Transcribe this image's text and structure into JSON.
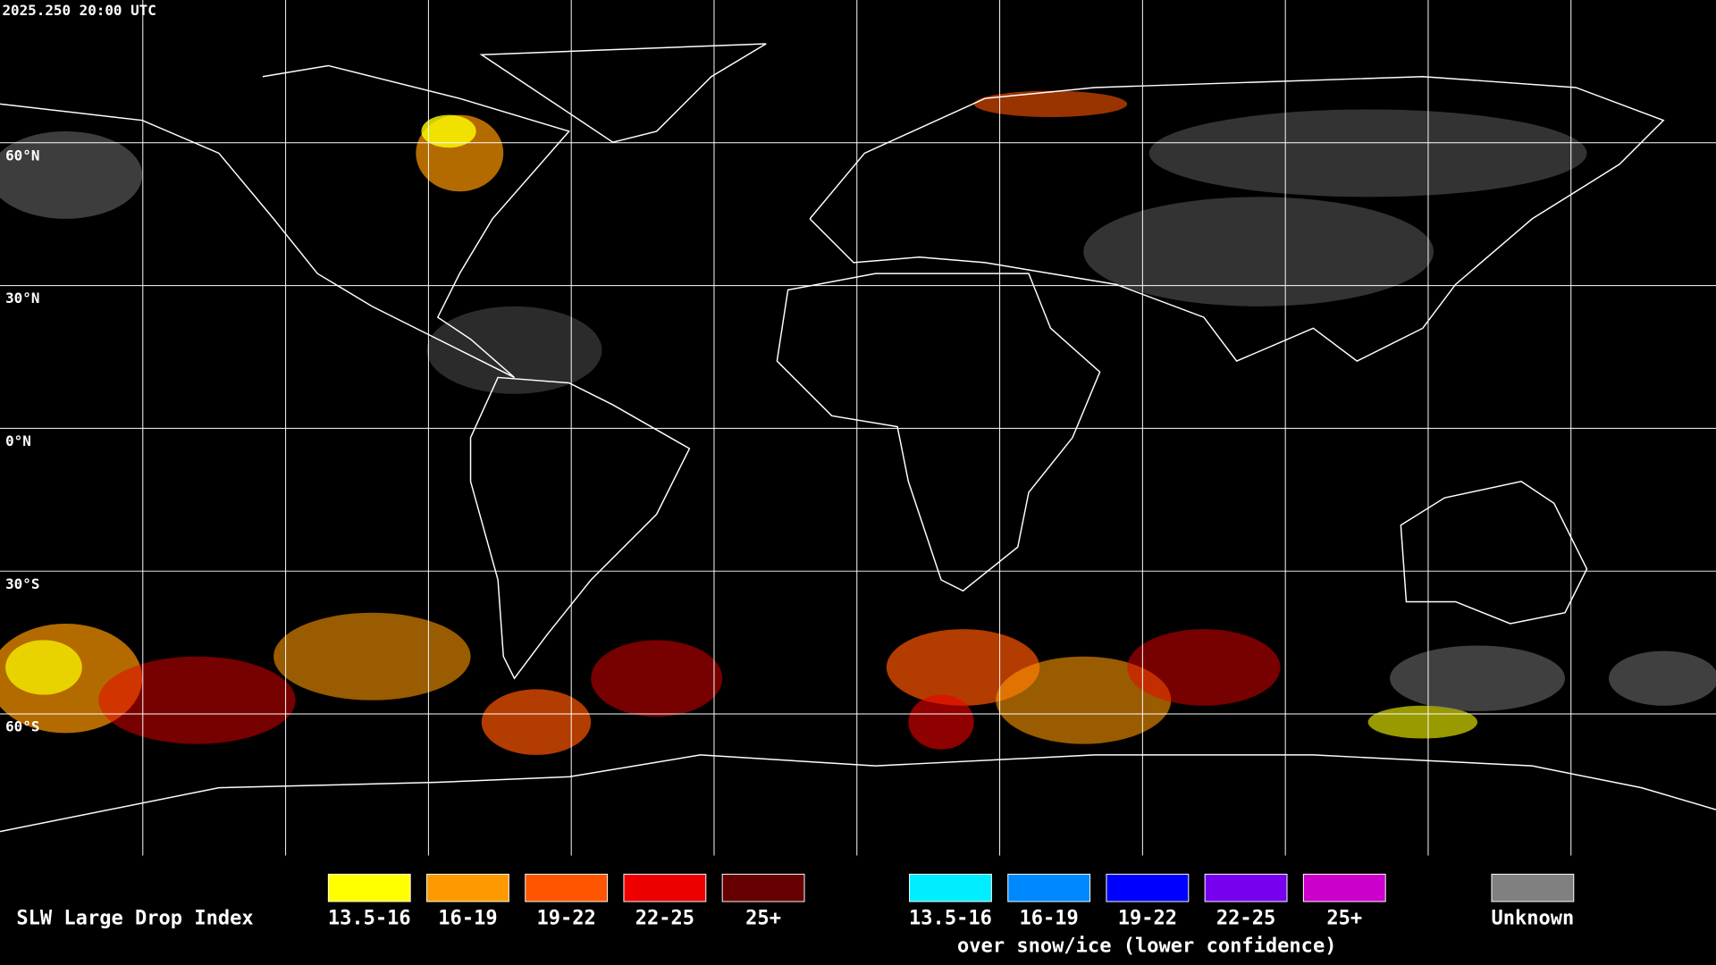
{
  "header": {
    "timestamp": "2025.250 20:00 UTC"
  },
  "map": {
    "latitude_labels": [
      "60°N",
      "30°N",
      "0°N",
      "30°S",
      "60°S"
    ]
  },
  "legend": {
    "title": "SLW Large Drop Index",
    "groups": [
      {
        "items": [
          {
            "label": "13.5-16",
            "color": "#ffff00"
          },
          {
            "label": "16-19",
            "color": "#ff9900"
          },
          {
            "label": "19-22",
            "color": "#ff5500"
          },
          {
            "label": "22-25",
            "color": "#ee0000"
          },
          {
            "label": "25+",
            "color": "#660000"
          }
        ]
      },
      {
        "items": [
          {
            "label": "13.5-16",
            "color": "#00eeff"
          },
          {
            "label": "16-19",
            "color": "#0088ff"
          },
          {
            "label": "19-22",
            "color": "#0000ff"
          },
          {
            "label": "22-25",
            "color": "#7700ee"
          },
          {
            "label": "25+",
            "color": "#cc00cc"
          }
        ],
        "caption": "over snow/ice (lower confidence)"
      },
      {
        "items": [
          {
            "label": "Unknown",
            "color": "#808080"
          }
        ]
      }
    ]
  }
}
